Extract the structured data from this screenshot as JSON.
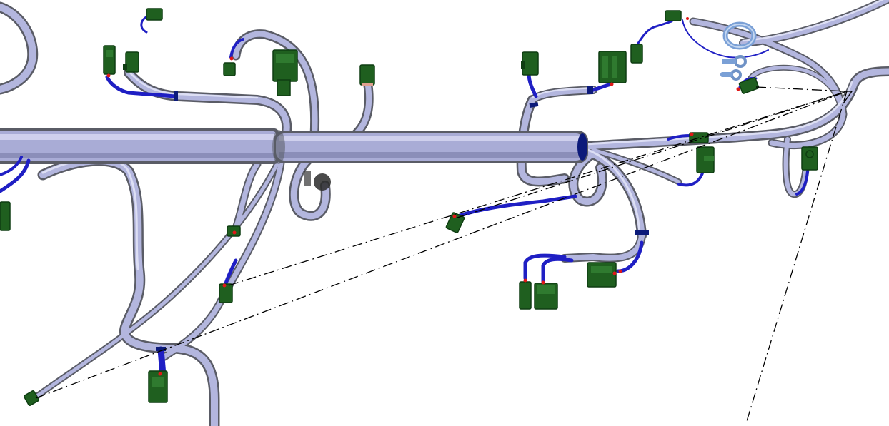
{
  "scene": {
    "kind": "3d-wiring-harness-viewport",
    "background": "#ffffff"
  },
  "colors": {
    "sheath": "#b3b6de",
    "sheath_edge": "#5a5c66",
    "sheath_highlight": "#e4e6f8",
    "wire": "#1f1fc4",
    "connector": "#1f5f1f",
    "connector_dark": "#0f3d12",
    "terminal": "#e01818",
    "ring_terminal": "#7aa0d6",
    "dimension_line": "#000000"
  },
  "elements": {
    "connectors": [
      "connector-top-left-a",
      "connector-top-left-b",
      "connector-top-left-c",
      "connector-top-mid-a",
      "connector-top-mid-b",
      "connector-top-mid-c",
      "connector-top-right-a",
      "connector-top-right-b",
      "connector-top-right-c",
      "connector-right-a",
      "connector-right-b",
      "connector-right-c",
      "connector-mid-a",
      "connector-mid-b",
      "connector-bottom-cluster",
      "connector-left-a",
      "connector-left-b",
      "connector-bottom-left"
    ],
    "ring_terminals": 3,
    "dimension_lines": 4
  }
}
